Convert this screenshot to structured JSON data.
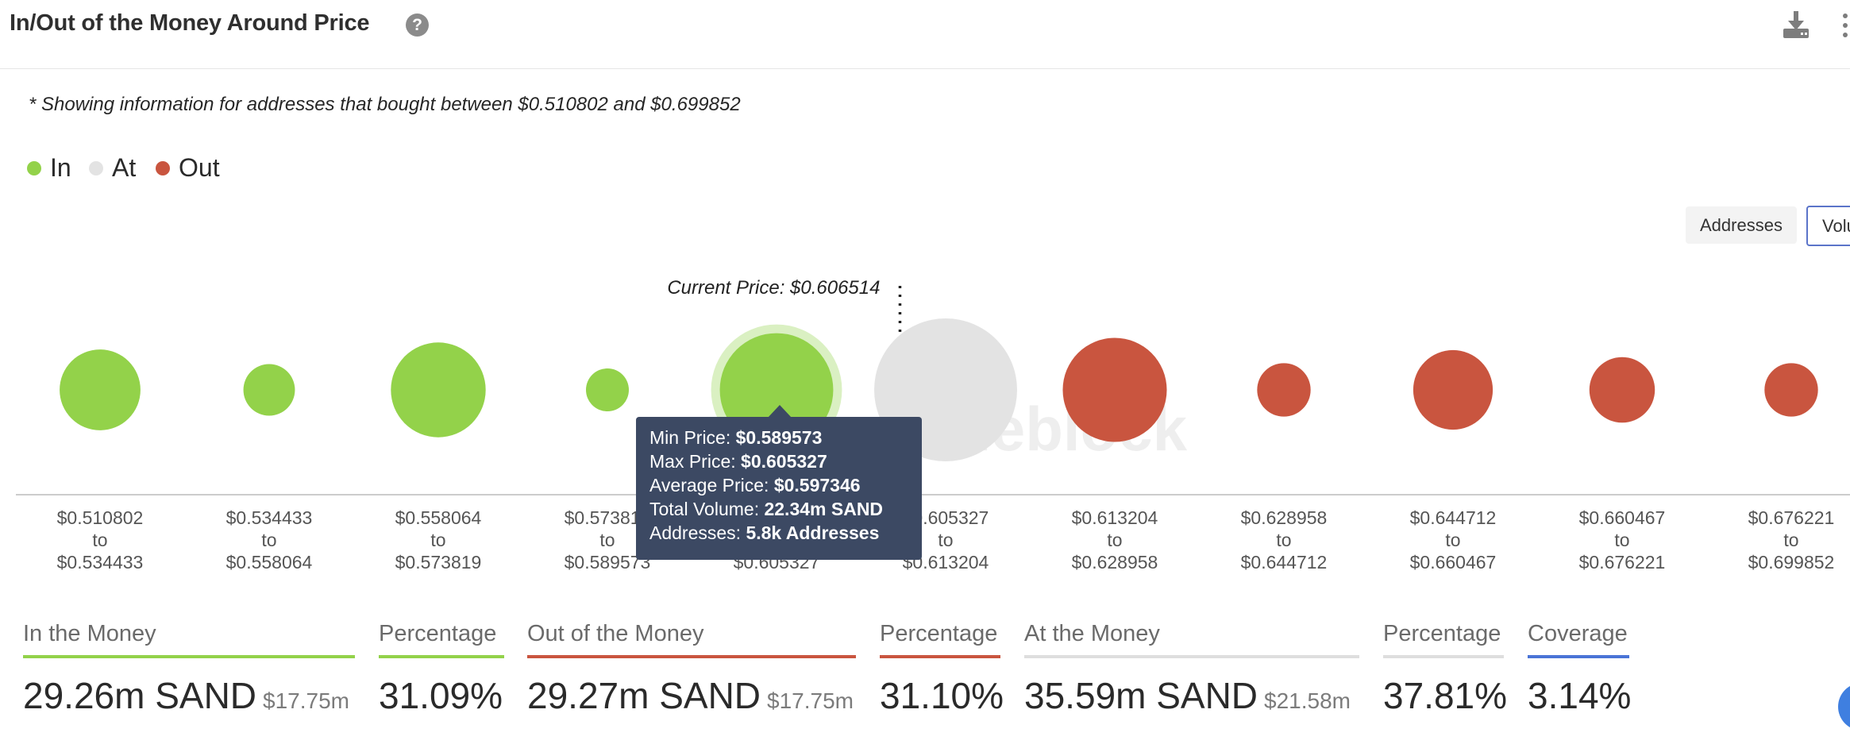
{
  "header": {
    "title": "In/Out of the Money Around Price",
    "help_glyph": "?",
    "icons": [
      "help-icon",
      "download-icon",
      "menu-icon"
    ]
  },
  "note": "* Showing information for addresses that bought between $0.510802 and $0.699852",
  "legend": [
    {
      "label": "In",
      "color": "#93d24a"
    },
    {
      "label": "At",
      "color": "#e3e3e3"
    },
    {
      "label": "Out",
      "color": "#c9553f"
    }
  ],
  "toggle": {
    "options": [
      "Addresses",
      "Volu"
    ],
    "active": "Volu"
  },
  "chart_data": {
    "type": "scatter",
    "subtype": "bubble",
    "current_price_label": "Current Price: $0.606514",
    "watermark": "intheblock",
    "ranges": [
      {
        "from": "$0.510802",
        "to": "$0.534433",
        "status": "In",
        "relative_size": 0.32
      },
      {
        "from": "$0.534433",
        "to": "$0.558064",
        "status": "In",
        "relative_size": 0.13
      },
      {
        "from": "$0.558064",
        "to": "$0.573819",
        "status": "In",
        "relative_size": 0.44
      },
      {
        "from": "$0.573819",
        "to": "$0.589573",
        "status": "In",
        "relative_size": 0.09
      },
      {
        "from": "$0.589573",
        "to": "$0.605327",
        "status": "In",
        "relative_size": 0.63,
        "highlighted": true
      },
      {
        "from": "$0.605327",
        "to": "$0.613204",
        "status": "At",
        "relative_size": 1.0
      },
      {
        "from": "$0.613204",
        "to": "$0.628958",
        "status": "Out",
        "relative_size": 0.53
      },
      {
        "from": "$0.628958",
        "to": "$0.644712",
        "status": "Out",
        "relative_size": 0.14
      },
      {
        "from": "$0.644712",
        "to": "$0.660467",
        "status": "Out",
        "relative_size": 0.31
      },
      {
        "from": "$0.660467",
        "to": "$0.676221",
        "status": "Out",
        "relative_size": 0.21
      },
      {
        "from": "$0.676221",
        "to": "$0.699852",
        "status": "Out",
        "relative_size": 0.14
      }
    ],
    "to_word": "to",
    "colors": {
      "In": "#93d24a",
      "At": "#e3e3e3",
      "Out": "#c9553f",
      "halo": "#daf0c2"
    }
  },
  "tooltip": {
    "rows": [
      {
        "label": "Min Price: ",
        "value": "$0.589573"
      },
      {
        "label": "Max Price: ",
        "value": "$0.605327"
      },
      {
        "label": "Average Price: ",
        "value": "$0.597346"
      },
      {
        "label": "Total Volume: ",
        "value": "22.34m SAND"
      },
      {
        "label": "Addresses: ",
        "value": "5.8k Addresses"
      }
    ]
  },
  "stats": [
    {
      "label": "In the Money",
      "value": "29.26m SAND",
      "sub": "$17.75m",
      "color": "#93d24a"
    },
    {
      "label": "Percentage",
      "value": "31.09%",
      "sub": "",
      "color": "#93d24a"
    },
    {
      "label": "Out of the Money",
      "value": "29.27m SAND",
      "sub": "$17.75m",
      "color": "#c9553f"
    },
    {
      "label": "Percentage",
      "value": "31.10%",
      "sub": "",
      "color": "#c9553f"
    },
    {
      "label": "At the Money",
      "value": "35.59m SAND",
      "sub": "$21.58m",
      "color": "#dedede"
    },
    {
      "label": "Percentage",
      "value": "37.81%",
      "sub": "",
      "color": "#dedede"
    },
    {
      "label": "Coverage",
      "value": "3.14%",
      "sub": "",
      "color": "#4a74d6"
    }
  ]
}
